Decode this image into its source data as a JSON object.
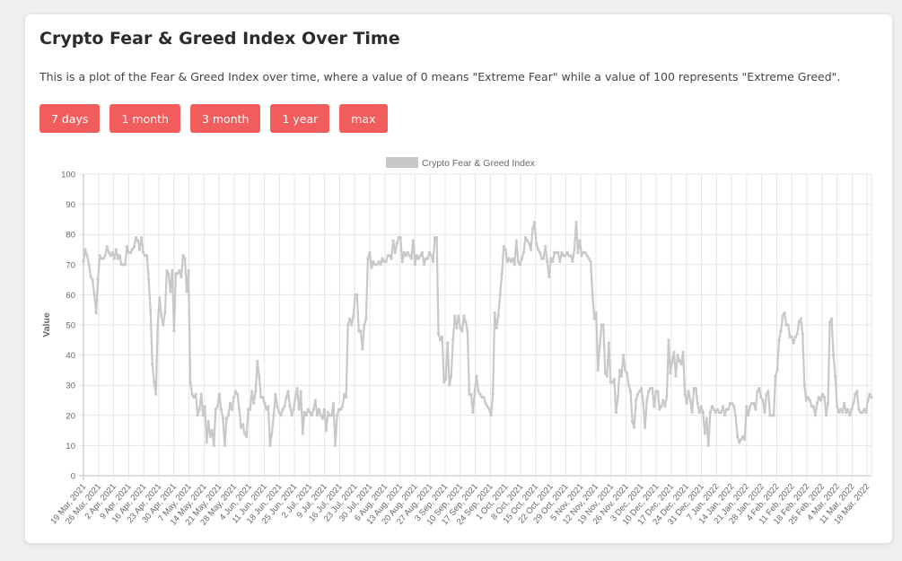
{
  "header": {
    "title": "Crypto Fear & Greed Index Over Time",
    "description": "This is a plot of the Fear & Greed Index over time, where a value of 0 means \"Extreme Fear\" while a value of 100 represents \"Extreme Greed\"."
  },
  "range_buttons": [
    {
      "label": "7 days"
    },
    {
      "label": "1 month"
    },
    {
      "label": "3 month"
    },
    {
      "label": "1 year"
    },
    {
      "label": "max"
    }
  ],
  "colors": {
    "accent": "#f15d5d",
    "line": "#c8c8c8",
    "grid": "#e6e6e6"
  },
  "chart_data": {
    "type": "line",
    "ylabel": "Value",
    "ylim": [
      0,
      100
    ],
    "yticks": [
      0,
      10,
      20,
      30,
      40,
      50,
      60,
      70,
      80,
      90,
      100
    ],
    "grid": true,
    "legend_position": "top",
    "start_date": "2021-03-19",
    "end_date": "2022-03-20",
    "x_tick_labels": [
      "19 Mar, 2021",
      "26 Mar, 2021",
      "2 Apr, 2021",
      "9 Apr, 2021",
      "16 Apr, 2021",
      "23 Apr, 2021",
      "30 Apr, 2021",
      "7 May, 2021",
      "14 May, 2021",
      "21 May, 2021",
      "28 May, 2021",
      "4 Jun, 2021",
      "11 Jun, 2021",
      "18 Jun, 2021",
      "25 Jun, 2021",
      "2 Jul, 2021",
      "9 Jul, 2021",
      "16 Jul, 2021",
      "23 Jul, 2021",
      "30 Jul, 2021",
      "6 Aug, 2021",
      "13 Aug, 2021",
      "20 Aug, 2021",
      "27 Aug, 2021",
      "3 Sep, 2021",
      "10 Sep, 2021",
      "17 Sep, 2021",
      "24 Sep, 2021",
      "1 Oct, 2021",
      "8 Oct, 2021",
      "15 Oct, 2021",
      "22 Oct, 2021",
      "29 Oct, 2021",
      "5 Nov, 2021",
      "12 Nov, 2021",
      "19 Nov, 2021",
      "26 Nov, 2021",
      "3 Dec, 2021",
      "10 Dec, 2021",
      "17 Dec, 2021",
      "24 Dec, 2021",
      "31 Dec, 2021",
      "7 Jan, 2022",
      "14 Jan, 2022",
      "21 Jan, 2022",
      "28 Jan, 2022",
      "4 Feb, 2022",
      "11 Feb, 2022",
      "18 Feb, 2022",
      "25 Feb, 2022",
      "4 Mar, 2022",
      "11 Mar, 2022",
      "18 Mar, 2022"
    ],
    "series": [
      {
        "name": "Crypto Fear & Greed Index",
        "values": [
          71,
          75,
          73,
          70,
          66,
          65,
          60,
          54,
          65,
          73,
          72,
          72,
          73,
          76,
          74,
          73,
          74,
          72,
          75,
          72,
          73,
          70,
          70,
          70,
          76,
          74,
          74,
          75,
          76,
          79,
          78,
          75,
          79,
          74,
          73,
          73,
          65,
          55,
          37,
          31,
          27,
          50,
          59,
          53,
          50,
          54,
          68,
          67,
          61,
          68,
          48,
          67,
          67,
          68,
          66,
          73,
          72,
          61,
          68,
          31,
          27,
          26,
          27,
          20,
          22,
          27,
          20,
          23,
          11,
          18,
          13,
          15,
          10,
          22,
          23,
          27,
          22,
          19,
          10,
          19,
          20,
          24,
          22,
          26,
          28,
          27,
          22,
          16,
          17,
          14,
          13,
          22,
          22,
          28,
          24,
          28,
          38,
          33,
          26,
          26,
          24,
          22,
          23,
          10,
          14,
          20,
          27,
          23,
          21,
          20,
          22,
          23,
          26,
          28,
          23,
          20,
          22,
          26,
          29,
          22,
          28,
          14,
          21,
          20,
          22,
          21,
          20,
          22,
          25,
          20,
          22,
          20,
          19,
          22,
          15,
          21,
          20,
          20,
          24,
          10,
          20,
          22,
          22,
          23,
          27,
          26,
          50,
          52,
          50,
          53,
          60,
          60,
          48,
          48,
          42,
          50,
          52,
          72,
          74,
          69,
          71,
          70,
          70,
          71,
          70,
          72,
          71,
          71,
          73,
          73,
          72,
          78,
          74,
          77,
          79,
          79,
          71,
          74,
          73,
          74,
          73,
          72,
          78,
          70,
          73,
          72,
          73,
          74,
          70,
          72,
          72,
          74,
          73,
          71,
          79,
          79,
          47,
          45,
          46,
          31,
          32,
          44,
          30,
          33,
          45,
          53,
          49,
          53,
          49,
          48,
          53,
          51,
          48,
          27,
          27,
          21,
          28,
          33,
          28,
          27,
          26,
          26,
          24,
          23,
          22,
          20,
          27,
          54,
          49,
          53,
          60,
          67,
          76,
          75,
          71,
          72,
          71,
          72,
          70,
          78,
          71,
          70,
          72,
          74,
          79,
          78,
          77,
          75,
          82,
          84,
          77,
          75,
          74,
          72,
          72,
          76,
          71,
          66,
          72,
          71,
          74,
          74,
          74,
          71,
          74,
          73,
          73,
          74,
          73,
          73,
          71,
          75,
          84,
          74,
          78,
          73,
          74,
          74,
          73,
          72,
          71,
          60,
          52,
          54,
          35,
          43,
          50,
          50,
          34,
          33,
          44,
          31,
          31,
          32,
          21,
          26,
          35,
          33,
          40,
          35,
          34,
          30,
          28,
          18,
          16,
          25,
          27,
          28,
          29,
          24,
          16,
          25,
          28,
          29,
          29,
          23,
          28,
          28,
          22,
          23,
          25,
          23,
          26,
          45,
          34,
          38,
          41,
          33,
          40,
          38,
          37,
          41,
          27,
          24,
          28,
          25,
          21,
          29,
          29,
          24,
          21,
          23,
          21,
          14,
          19,
          10,
          21,
          23,
          22,
          21,
          22,
          21,
          21,
          23,
          20,
          22,
          22,
          24,
          24,
          23,
          20,
          13,
          11,
          12,
          13,
          12,
          23,
          20,
          23,
          24,
          24,
          22,
          28,
          29,
          26,
          25,
          21,
          27,
          28,
          20,
          20,
          20,
          33,
          35,
          45,
          48,
          53,
          54,
          50,
          50,
          46,
          46,
          44,
          46,
          47,
          51,
          52,
          47,
          30,
          25,
          26,
          25,
          23,
          23,
          20,
          24,
          26,
          25,
          27,
          26,
          20,
          24,
          51,
          52,
          40,
          33,
          23,
          21,
          22,
          21,
          24,
          21,
          22,
          20,
          22,
          24,
          27,
          28,
          22,
          21,
          21,
          22,
          21,
          25,
          27,
          26
        ]
      }
    ]
  }
}
